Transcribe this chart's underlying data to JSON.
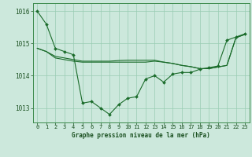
{
  "title": "Graphe pression niveau de la mer (hPa)",
  "background_color": "#cce8dc",
  "grid_color": "#99ccb3",
  "line_color": "#1a6b2a",
  "marker_color": "#1a6b2a",
  "xlim": [
    -0.5,
    23.5
  ],
  "ylim": [
    1012.55,
    1016.25
  ],
  "yticks": [
    1013,
    1014,
    1015,
    1016
  ],
  "xticks": [
    0,
    1,
    2,
    3,
    4,
    5,
    6,
    7,
    8,
    9,
    10,
    11,
    12,
    13,
    14,
    15,
    16,
    17,
    18,
    19,
    20,
    21,
    22,
    23
  ],
  "series1_x": [
    0,
    1,
    2,
    3,
    4,
    5,
    6,
    7,
    8,
    9,
    10,
    11,
    12,
    13,
    14,
    15,
    16,
    17,
    18,
    19,
    20,
    21,
    22,
    23
  ],
  "series1_y": [
    1016.0,
    1015.6,
    1014.85,
    1014.75,
    1014.65,
    1013.15,
    1013.2,
    1013.0,
    1012.8,
    1013.1,
    1013.3,
    1013.35,
    1013.9,
    1014.0,
    1013.8,
    1014.05,
    1014.1,
    1014.1,
    1014.2,
    1014.25,
    1014.3,
    1015.1,
    1015.2,
    1015.3
  ],
  "series2_x": [
    0,
    1,
    2,
    3,
    4,
    5,
    6,
    7,
    8,
    9,
    10,
    11,
    12,
    13,
    14,
    15,
    16,
    17,
    18,
    19,
    20,
    21,
    22,
    23
  ],
  "series2_y": [
    1014.85,
    1014.75,
    1014.6,
    1014.55,
    1014.5,
    1014.45,
    1014.45,
    1014.45,
    1014.45,
    1014.47,
    1014.48,
    1014.48,
    1014.48,
    1014.48,
    1014.42,
    1014.38,
    1014.32,
    1014.28,
    1014.22,
    1014.22,
    1014.27,
    1014.32,
    1015.18,
    1015.28
  ],
  "series3_x": [
    0,
    1,
    2,
    3,
    4,
    5,
    6,
    7,
    8,
    9,
    10,
    11,
    12,
    13,
    14,
    15,
    16,
    17,
    18,
    19,
    20,
    21,
    22,
    23
  ],
  "series3_y": [
    1014.85,
    1014.75,
    1014.55,
    1014.5,
    1014.45,
    1014.42,
    1014.42,
    1014.42,
    1014.42,
    1014.42,
    1014.42,
    1014.42,
    1014.42,
    1014.45,
    1014.42,
    1014.38,
    1014.32,
    1014.28,
    1014.22,
    1014.22,
    1014.27,
    1014.32,
    1015.18,
    1015.28
  ],
  "xlabel_fontsize": 5.5,
  "tick_fontsize": 5.0,
  "ytick_fontsize": 5.5
}
